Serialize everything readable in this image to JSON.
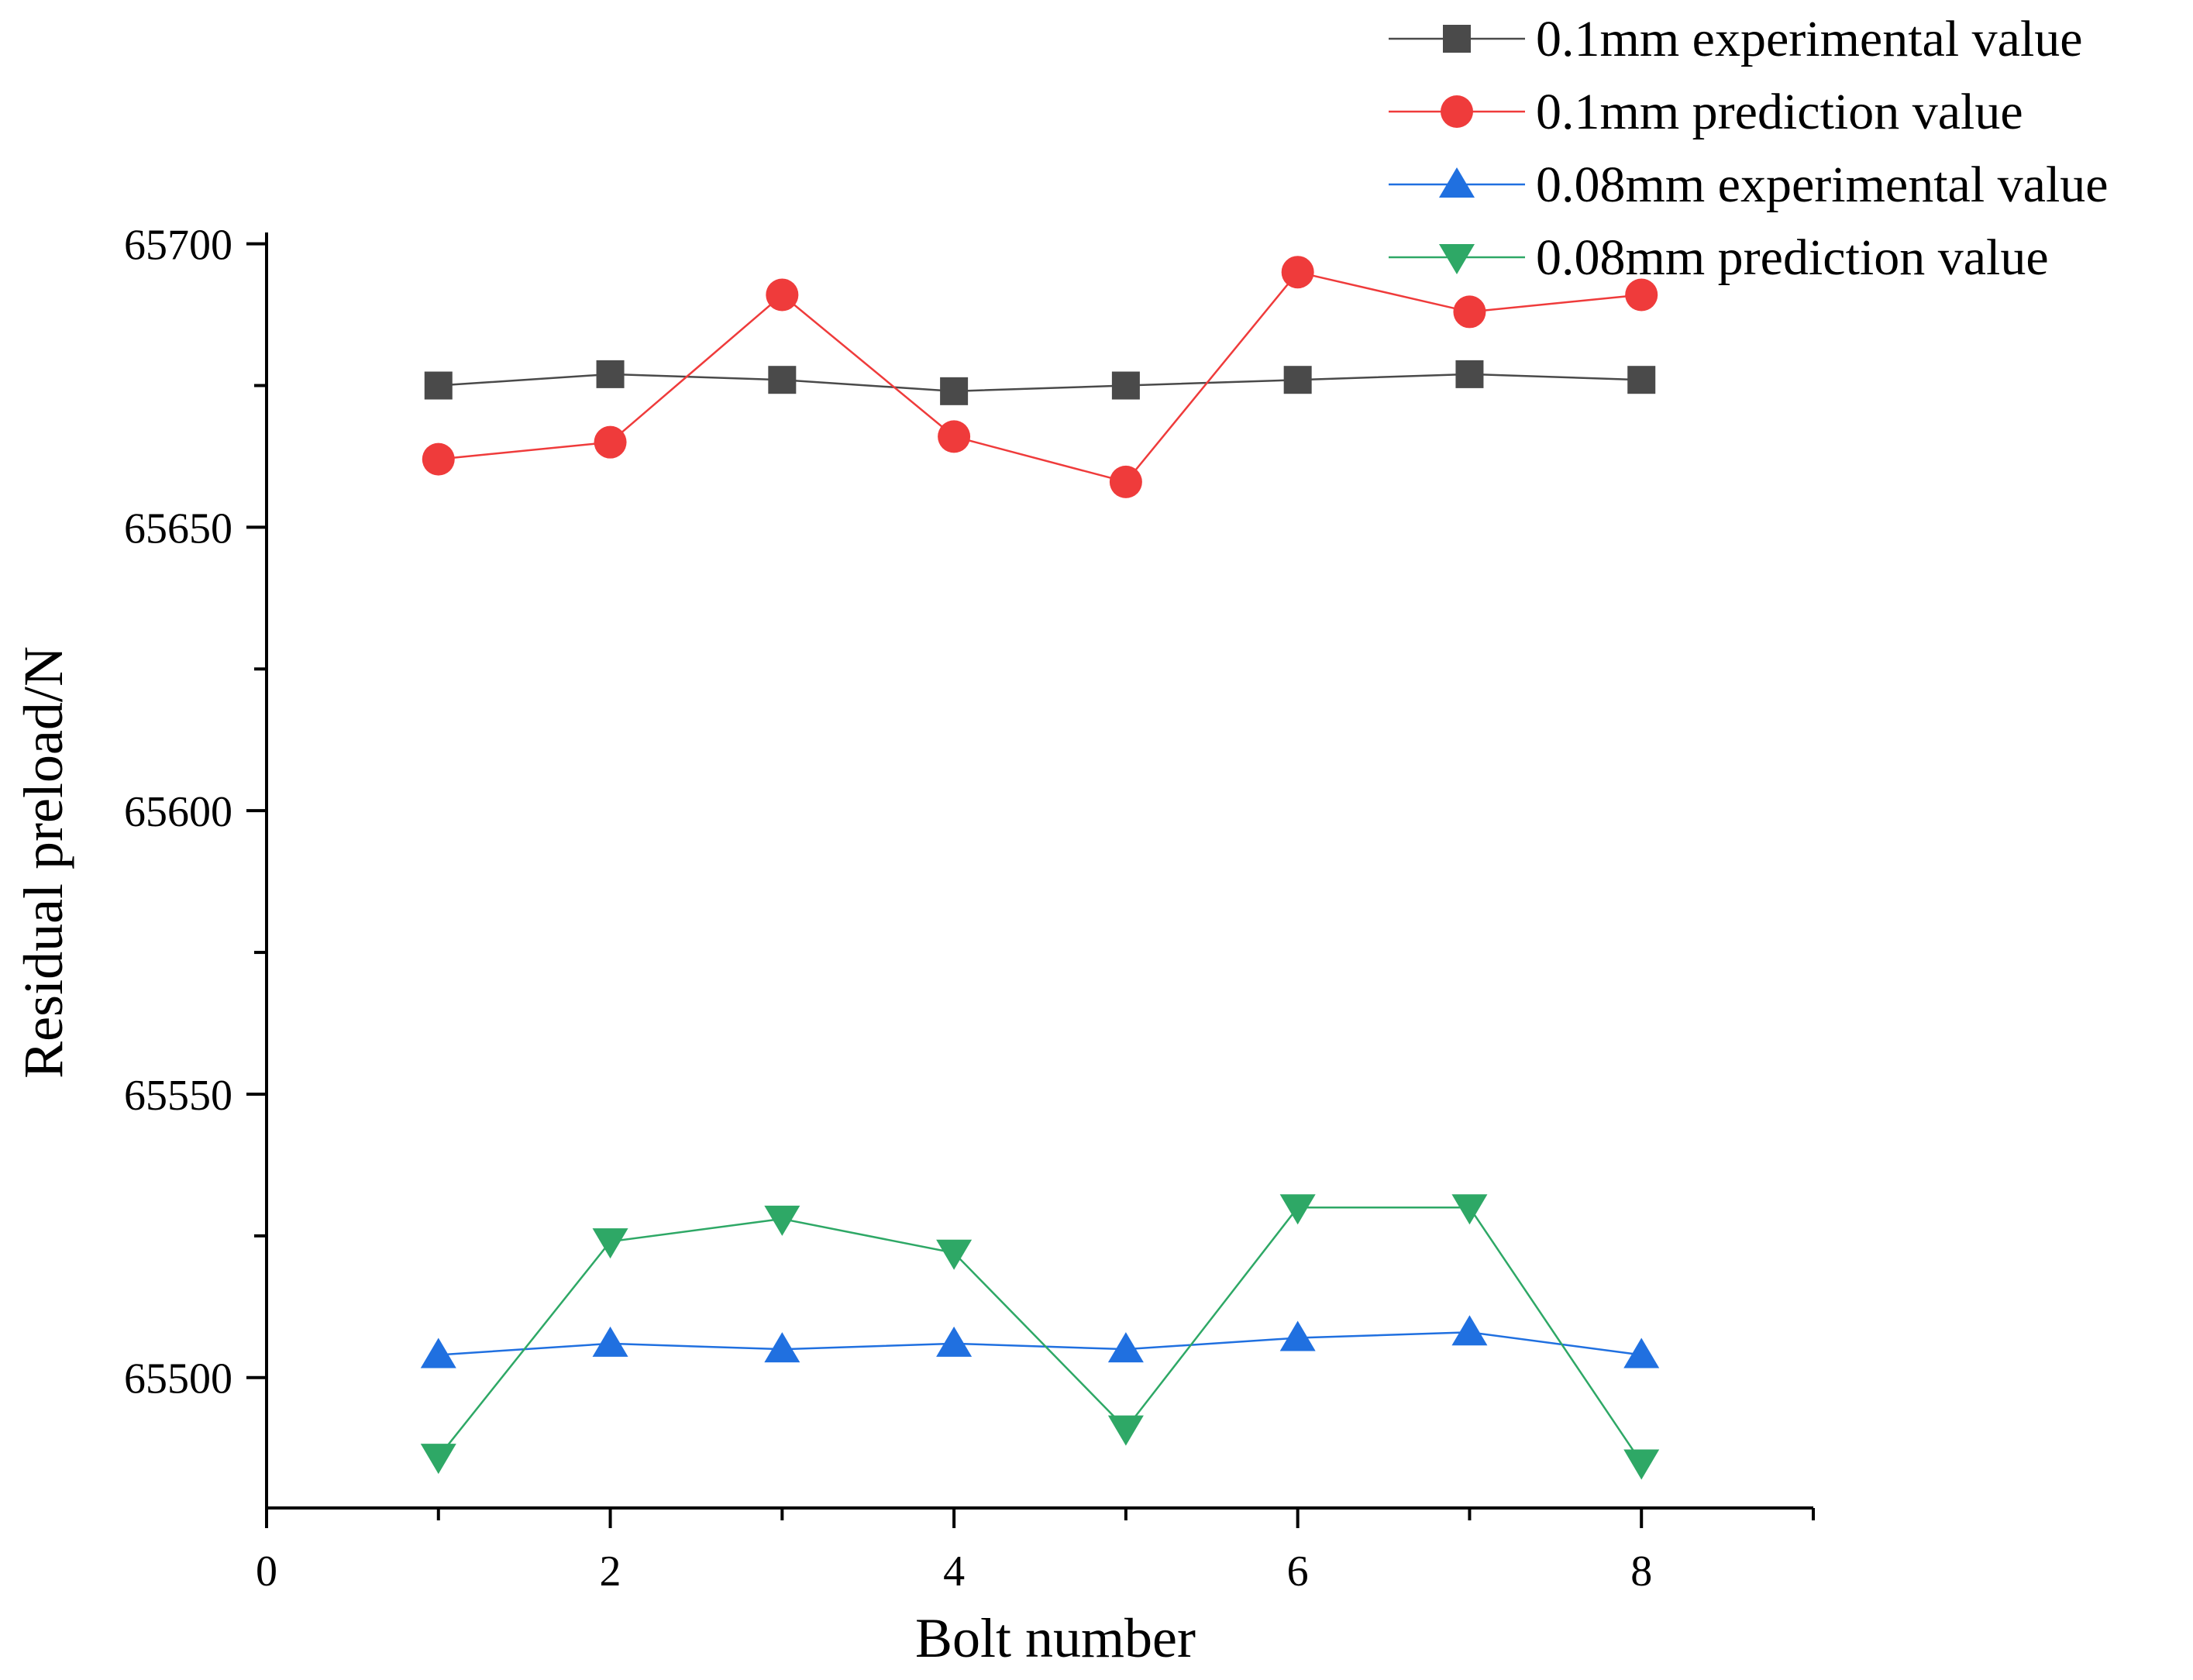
{
  "chart_data": {
    "type": "line",
    "title": "",
    "xlabel": "Bolt number",
    "ylabel": "Residual preload/N",
    "xlim": [
      0,
      9
    ],
    "ylim": [
      65477,
      65702
    ],
    "x_ticks": [
      0,
      2,
      4,
      6,
      8
    ],
    "y_ticks": [
      65500,
      65550,
      65600,
      65650,
      65700
    ],
    "x": [
      1,
      2,
      3,
      4,
      5,
      6,
      7,
      8
    ],
    "grid": false,
    "legend_position": "top-right",
    "series": [
      {
        "name": "0.1mm experimental value",
        "marker": "square",
        "color": "#4a4a4a",
        "values": [
          65675,
          65677,
          65676,
          65674,
          65675,
          65676,
          65677,
          65676
        ]
      },
      {
        "name": "0.1mm prediction value",
        "marker": "circle",
        "color": "#ef3b3b",
        "values": [
          65662,
          65665,
          65691,
          65666,
          65658,
          65695,
          65688,
          65691
        ]
      },
      {
        "name": "0.08mm experimental value",
        "marker": "triangle-up",
        "color": "#2070e0",
        "values": [
          65504,
          65506,
          65505,
          65506,
          65505,
          65507,
          65508,
          65504
        ]
      },
      {
        "name": "0.08mm prediction value",
        "marker": "triangle-down",
        "color": "#2ea866",
        "values": [
          65486,
          65524,
          65528,
          65522,
          65491,
          65530,
          65530,
          65485
        ]
      }
    ]
  }
}
